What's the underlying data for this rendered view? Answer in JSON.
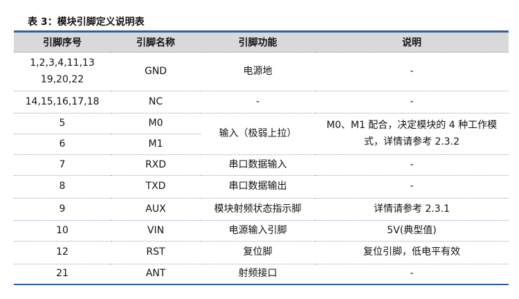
{
  "title": "表 3：模块引脚定义说明表",
  "headers": [
    "引脚序号",
    "引脚名称",
    "引脚功能",
    "说明"
  ],
  "rows": [
    {
      "pin": "1,2,3,4,11,13 19,20,22",
      "pin_line1": "1,2,3,4,11,13",
      "pin_line2": "19,20,22",
      "name": "GND",
      "func": "电源地",
      "desc": "-"
    },
    {
      "pin": "14,15,16,17,18",
      "name": "NC",
      "func": "-",
      "desc": "-"
    },
    {
      "pin": "5",
      "name": "M0",
      "func": "输入（极弱上拉）",
      "desc": "M0、M1 配合，决定模块的 4 种工作模式，详情请参考 2.3.2"
    },
    {
      "pin": "6",
      "name": "M1"
    },
    {
      "pin": "7",
      "name": "RXD",
      "func": "串口数据输入",
      "desc": "-"
    },
    {
      "pin": "8",
      "name": "TXD",
      "func": "串口数据输出",
      "desc": "-"
    },
    {
      "pin": "9",
      "name": "AUX",
      "func": "模块射频状态指示脚",
      "desc": "详情请参考 2.3.1"
    },
    {
      "pin": "10",
      "name": "VIN",
      "func": "电源输入引脚",
      "desc": "5V(典型值)"
    },
    {
      "pin": "12",
      "name": "RST",
      "func": "复位脚",
      "desc": "复位引脚，低电平有效"
    },
    {
      "pin": "21",
      "name": "ANT",
      "func": "射频接口",
      "desc": "-"
    }
  ]
}
